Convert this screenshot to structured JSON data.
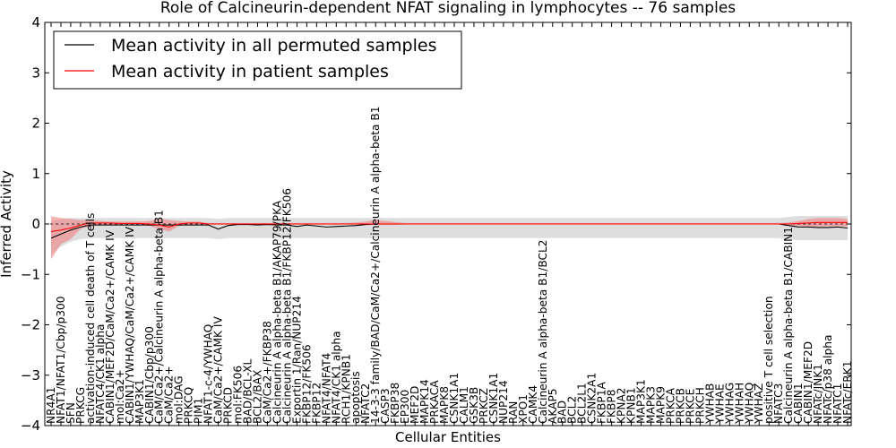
{
  "chart_data": {
    "type": "line",
    "title": "Role of Calcineurin-dependent NFAT signaling in lymphocytes -- 76 samples",
    "xlabel": "Cellular Entities",
    "ylabel": "Inferred Activity",
    "ylim": [
      -4,
      4
    ],
    "yticks": [
      "4",
      "3",
      "2",
      "1",
      "0",
      "−1",
      "−2",
      "−3",
      "−4"
    ],
    "grid": false,
    "legend_position": "top-left",
    "colors": {
      "permuted": "#000000",
      "patient": "#ff0000",
      "patient_band": "#f08080",
      "permuted_band": "#d3d3d3"
    },
    "categories": [
      "NR4A1",
      "NFAT1/NFAT1/Cbp/p300",
      "SFN",
      "PRKCG",
      "activation-induced cell death of T cells",
      "NFATC4/CK1 alpha",
      "CABIN1/MEF2D/CaM/Ca2+/CAMK IV",
      "mol:Ca2+",
      "CABIN1/YWHAQ/CaM/Ca2+/CAMK IV",
      "MAP3K1",
      "CABIN1/Cbp/p300",
      "CaM/Ca2+/Calcineurin A alpha-beta B1",
      "CaM/Ca2+",
      "mol:DAG",
      "PRKCQ",
      "PIM1",
      "NFAT1-c-4/YWHAQ",
      "CaM/Ca2+/CAMK IV",
      "PRKCD",
      "mol:FK506",
      "BAD/BCL-XL",
      "BCL2/BAX",
      "CaM/Ca2+/FKBP38",
      "Calcineurin A alpha-beta B1/AKAP79/PKA",
      "Calcineurin A alpha-beta B1/FKBP12/FK506",
      "Exportin 1/Ran/NUP214",
      "FKBP12/FK506",
      "FKBP12",
      "NFAT4/NFAT4",
      "NFAT4/CK1 alpha",
      "RCH1/KPNB1",
      "apoptosis",
      "NFATC2",
      "14-3-3 family/BAD/CaM/Ca2+/Calcineurin A alpha-beta B1",
      "CASP3",
      "FKBP38",
      "EP300",
      "MEF2D",
      "MAPK14",
      "PRKACA",
      "MAPK8",
      "CSNK1A1",
      "CALM1",
      "GSK3B",
      "PRKCZ",
      "CSNK1A1",
      "NUP214",
      "RAN",
      "XPO1",
      "CAMK4",
      "Calcineurin A alpha-beta B1/BCL2",
      "AKAP5",
      "BAD",
      "BCL2",
      "BCL2L1",
      "CSNK2A1",
      "FKBP1A",
      "FKBP8",
      "KPNA2",
      "KPNB1",
      "MAP3K1",
      "MAPK3",
      "MAPK9",
      "PRKCA",
      "PRKCB",
      "PRKCE",
      "PRKCH",
      "YWHAB",
      "YWHAE",
      "YWHAG",
      "YWHAH",
      "YWHAQ",
      "YWHAZ",
      "positive T cell selection",
      "NFATC3",
      "Calcineurin A alpha-beta B1/CABIN1",
      "CABIN1",
      "CABIN1/MEF2D",
      "NFATc/JNK1",
      "NFATc/p38 alpha",
      "NFATC1",
      "NFATc/ERK1"
    ],
    "series": [
      {
        "name": "Mean activity in all permuted samples",
        "color": "#000000",
        "values": [
          -0.28,
          -0.2,
          -0.12,
          -0.06,
          -0.02,
          -0.02,
          -0.02,
          -0.02,
          -0.02,
          -0.02,
          -0.02,
          -0.02,
          -0.02,
          -0.02,
          -0.02,
          -0.02,
          -0.02,
          -0.1,
          -0.03,
          -0.01,
          -0.01,
          -0.02,
          -0.01,
          -0.02,
          -0.02,
          -0.05,
          -0.02,
          -0.04,
          -0.06,
          -0.05,
          -0.04,
          -0.03,
          -0.01,
          0.0,
          0.0,
          0.0,
          0.0,
          0.0,
          0.0,
          0.0,
          0.0,
          0.0,
          0.0,
          0.0,
          0.0,
          0.0,
          0.0,
          0.0,
          0.0,
          0.0,
          0.0,
          0.0,
          0.0,
          0.0,
          0.0,
          0.0,
          0.0,
          0.0,
          0.0,
          0.0,
          0.0,
          0.0,
          0.0,
          0.0,
          0.0,
          0.0,
          0.0,
          0.0,
          0.0,
          0.0,
          0.0,
          0.0,
          0.0,
          0.0,
          0.0,
          -0.03,
          -0.06,
          -0.06,
          -0.07,
          -0.07,
          -0.06,
          -0.08
        ],
        "lower": [
          -0.6,
          -0.45,
          -0.35,
          -0.3,
          -0.28,
          -0.28,
          -0.28,
          -0.28,
          -0.28,
          -0.28,
          -0.28,
          -0.28,
          -0.28,
          -0.28,
          -0.28,
          -0.28,
          -0.28,
          -0.3,
          -0.28,
          -0.28,
          -0.28,
          -0.28,
          -0.28,
          -0.28,
          -0.28,
          -0.28,
          -0.28,
          -0.28,
          -0.28,
          -0.28,
          -0.28,
          -0.28,
          -0.28,
          -0.28,
          -0.28,
          -0.28,
          -0.28,
          -0.28,
          -0.28,
          -0.28,
          -0.28,
          -0.28,
          -0.28,
          -0.28,
          -0.28,
          -0.28,
          -0.28,
          -0.28,
          -0.28,
          -0.28,
          -0.28,
          -0.28,
          -0.28,
          -0.28,
          -0.28,
          -0.28,
          -0.28,
          -0.28,
          -0.28,
          -0.28,
          -0.28,
          -0.28,
          -0.28,
          -0.28,
          -0.28,
          -0.28,
          -0.28,
          -0.28,
          -0.28,
          -0.28,
          -0.28,
          -0.28,
          -0.28,
          -0.28,
          -0.28,
          -0.3,
          -0.32,
          -0.32,
          -0.32,
          -0.32,
          -0.32,
          -0.32
        ],
        "upper": [
          0.05,
          0.1,
          0.12,
          0.12,
          0.12,
          0.12,
          0.12,
          0.12,
          0.12,
          0.12,
          0.12,
          0.12,
          0.12,
          0.12,
          0.12,
          0.12,
          0.12,
          0.1,
          0.12,
          0.12,
          0.12,
          0.12,
          0.12,
          0.12,
          0.12,
          0.12,
          0.12,
          0.12,
          0.12,
          0.12,
          0.12,
          0.12,
          0.12,
          0.12,
          0.12,
          0.12,
          0.12,
          0.12,
          0.12,
          0.12,
          0.12,
          0.12,
          0.12,
          0.12,
          0.12,
          0.12,
          0.12,
          0.12,
          0.12,
          0.12,
          0.12,
          0.12,
          0.12,
          0.12,
          0.12,
          0.12,
          0.12,
          0.12,
          0.12,
          0.12,
          0.12,
          0.12,
          0.12,
          0.12,
          0.12,
          0.12,
          0.12,
          0.12,
          0.12,
          0.12,
          0.12,
          0.12,
          0.12,
          0.12,
          0.12,
          0.14,
          0.16,
          0.16,
          0.16,
          0.16,
          0.16,
          0.16
        ]
      },
      {
        "name": "Mean activity in patient samples",
        "color": "#ff0000",
        "values": [
          -0.15,
          -0.12,
          -0.08,
          -0.02,
          0.02,
          0.02,
          0.02,
          0.01,
          0.01,
          0.01,
          0.0,
          -0.02,
          -0.06,
          0.0,
          0.02,
          0.02,
          0.0,
          0.0,
          0.0,
          0.0,
          0.0,
          0.0,
          0.0,
          0.0,
          0.0,
          0.0,
          0.0,
          0.0,
          0.0,
          0.0,
          0.0,
          0.0,
          0.0,
          0.0,
          0.0,
          0.0,
          0.0,
          0.0,
          0.0,
          0.0,
          0.0,
          0.0,
          0.0,
          0.0,
          0.0,
          0.0,
          0.0,
          0.0,
          0.0,
          0.0,
          0.0,
          0.0,
          0.0,
          0.0,
          0.0,
          0.0,
          0.0,
          0.0,
          0.0,
          0.0,
          0.0,
          0.0,
          0.0,
          0.0,
          0.0,
          0.0,
          0.0,
          0.0,
          0.0,
          0.0,
          0.0,
          0.0,
          0.0,
          0.0,
          0.0,
          0.0,
          0.01,
          0.02,
          0.03,
          0.03,
          0.03,
          0.03
        ],
        "lower": [
          -0.7,
          -0.4,
          -0.3,
          -0.1,
          -0.04,
          -0.02,
          -0.02,
          -0.02,
          -0.02,
          -0.02,
          -0.04,
          -0.1,
          -0.15,
          -0.04,
          -0.02,
          -0.02,
          -0.01,
          -0.01,
          -0.01,
          -0.01,
          -0.01,
          -0.01,
          -0.01,
          -0.01,
          -0.01,
          -0.01,
          -0.01,
          -0.01,
          -0.01,
          -0.01,
          -0.01,
          -0.01,
          -0.02,
          -0.02,
          -0.02,
          -0.02,
          -0.01,
          -0.01,
          -0.01,
          -0.01,
          -0.01,
          -0.01,
          -0.01,
          -0.01,
          -0.01,
          -0.01,
          -0.01,
          -0.01,
          -0.01,
          -0.01,
          -0.01,
          -0.01,
          -0.01,
          -0.01,
          -0.01,
          -0.01,
          -0.01,
          -0.01,
          -0.01,
          -0.01,
          -0.01,
          -0.01,
          -0.01,
          -0.01,
          -0.01,
          -0.01,
          -0.01,
          -0.01,
          -0.01,
          -0.01,
          -0.01,
          -0.01,
          -0.01,
          -0.01,
          -0.01,
          -0.02,
          -0.04,
          -0.06,
          -0.05,
          -0.05,
          -0.05,
          -0.05
        ],
        "upper": [
          0.15,
          0.12,
          0.1,
          0.08,
          0.08,
          0.06,
          0.05,
          0.05,
          0.05,
          0.05,
          0.06,
          0.1,
          0.08,
          0.06,
          0.05,
          0.05,
          0.02,
          0.02,
          0.02,
          0.02,
          0.02,
          0.02,
          0.02,
          0.02,
          0.02,
          0.02,
          0.02,
          0.02,
          0.02,
          0.02,
          0.02,
          0.03,
          0.05,
          0.08,
          0.06,
          0.04,
          0.02,
          0.02,
          0.02,
          0.02,
          0.02,
          0.02,
          0.02,
          0.02,
          0.02,
          0.02,
          0.02,
          0.02,
          0.02,
          0.02,
          0.02,
          0.02,
          0.02,
          0.02,
          0.02,
          0.02,
          0.02,
          0.02,
          0.02,
          0.02,
          0.02,
          0.02,
          0.02,
          0.02,
          0.02,
          0.02,
          0.02,
          0.02,
          0.02,
          0.02,
          0.02,
          0.02,
          0.02,
          0.02,
          0.02,
          0.03,
          0.06,
          0.1,
          0.12,
          0.12,
          0.12,
          0.1
        ]
      }
    ]
  }
}
